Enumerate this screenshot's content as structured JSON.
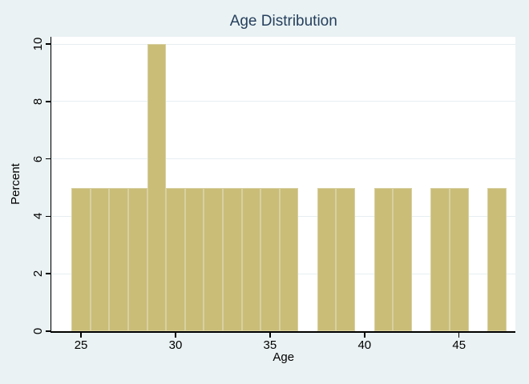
{
  "colors": {
    "background": "#eaf2f3",
    "plot_background": "#ffffff",
    "bar_fill": "#c9bd78",
    "bar_edge": "#d8d0a0",
    "gridline": "#e7eff1",
    "axis_line": "#000000",
    "tick_text": "#000000",
    "title_text": "#26405e"
  },
  "chart_data": {
    "type": "bar",
    "subtype": "histogram",
    "title": "Age Distribution",
    "xlabel": "Age",
    "ylabel": "Percent",
    "x_ticks": [
      25,
      30,
      35,
      40,
      45
    ],
    "y_ticks": [
      0,
      2,
      4,
      6,
      8,
      10
    ],
    "xlim": [
      23.45,
      47.98
    ],
    "ylim": [
      0,
      10
    ],
    "bin_width": 1,
    "grid": "horizontal",
    "legend": "none",
    "bins": [
      {
        "center": 25,
        "percent": 5
      },
      {
        "center": 26,
        "percent": 5
      },
      {
        "center": 27,
        "percent": 5
      },
      {
        "center": 28,
        "percent": 5
      },
      {
        "center": 29,
        "percent": 10
      },
      {
        "center": 30,
        "percent": 5
      },
      {
        "center": 31,
        "percent": 5
      },
      {
        "center": 32,
        "percent": 5
      },
      {
        "center": 33,
        "percent": 5
      },
      {
        "center": 34,
        "percent": 5
      },
      {
        "center": 35,
        "percent": 5
      },
      {
        "center": 36,
        "percent": 5
      },
      {
        "center": 37,
        "percent": 0
      },
      {
        "center": 38,
        "percent": 5
      },
      {
        "center": 39,
        "percent": 5
      },
      {
        "center": 40,
        "percent": 0
      },
      {
        "center": 41,
        "percent": 5
      },
      {
        "center": 42,
        "percent": 5
      },
      {
        "center": 43,
        "percent": 0
      },
      {
        "center": 44,
        "percent": 5
      },
      {
        "center": 45,
        "percent": 5
      },
      {
        "center": 46,
        "percent": 0
      },
      {
        "center": 47,
        "percent": 5
      }
    ]
  }
}
